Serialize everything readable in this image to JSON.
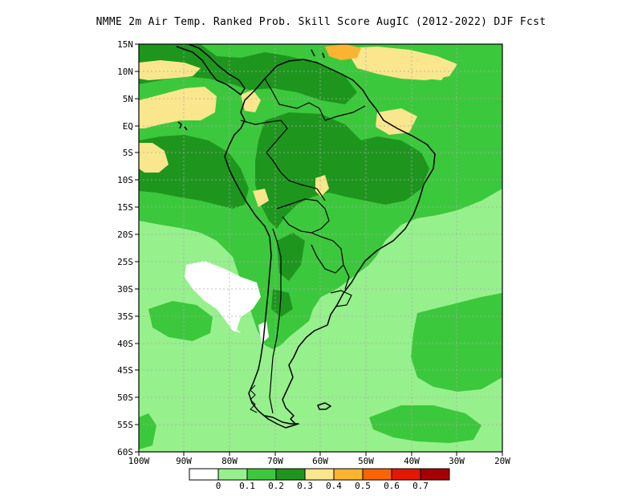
{
  "title": "NMME  2m Air Temp. Ranked Prob. Skill Score AugIC (2012-2022) DJF Fcst",
  "lat_labels": [
    "15N",
    "10N",
    "5N",
    "EQ",
    "5S",
    "10S",
    "15S",
    "20S",
    "25S",
    "30S",
    "35S",
    "40S",
    "45S",
    "50S",
    "55S",
    "60S"
  ],
  "lon_labels": [
    "100W",
    "90W",
    "80W",
    "70W",
    "60W",
    "50W",
    "40W",
    "30W",
    "20W"
  ],
  "colorbar": {
    "colors": [
      "#ffffff",
      "#96f08c",
      "#3cc83c",
      "#1e961e",
      "#fae68c",
      "#fab432",
      "#fa6400",
      "#e11900",
      "#a50000"
    ],
    "labels": [
      "0",
      "0.1",
      "0.2",
      "0.3",
      "0.4",
      "0.5",
      "0.6",
      "0.7"
    ]
  }
}
